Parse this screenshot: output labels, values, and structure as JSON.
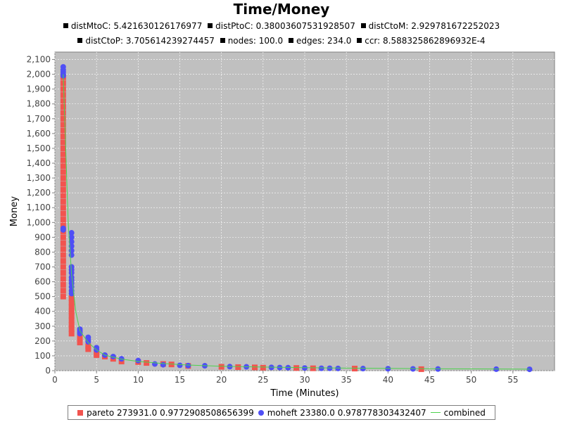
{
  "chart_data": {
    "type": "scatter",
    "title": "Time/Money",
    "subtitles": [
      "distMtoC: 5.421630126176977",
      "distPtoC: 0.38003607531928507",
      "distCtoM: 2.929781672252023",
      "distCtoP: 3.705614239274457",
      "nodes: 100.0",
      "edges: 234.0",
      "ccr: 8.588325862896932E-4"
    ],
    "xlabel": "Time (Minutes)",
    "ylabel": "Money",
    "xlim": [
      0,
      60
    ],
    "ylim": [
      0,
      2150
    ],
    "xticks": [
      "0",
      "5",
      "10",
      "15",
      "20",
      "25",
      "30",
      "35",
      "40",
      "45",
      "50",
      "55"
    ],
    "yticks": [
      "0",
      "100",
      "200",
      "300",
      "400",
      "500",
      "600",
      "700",
      "800",
      "900",
      "1,000",
      "1,100",
      "1,200",
      "1,300",
      "1,400",
      "1,500",
      "1,600",
      "1,700",
      "1,800",
      "1,900",
      "2,000",
      "2,100"
    ],
    "grid": true,
    "legend_position": "bottom",
    "colors": {
      "background": "#c0c0c0",
      "grid": "#ffffff",
      "pareto": "#f2544f",
      "moheft": "#4f4ff5",
      "combined": "#4cd24c"
    },
    "series": [
      {
        "name": "pareto 273931.0 0.9772908508656399",
        "marker": "square",
        "points": [
          [
            1,
            1980
          ],
          [
            1,
            1940
          ],
          [
            1,
            1900
          ],
          [
            1,
            1860
          ],
          [
            1,
            1820
          ],
          [
            1,
            1780
          ],
          [
            1,
            1740
          ],
          [
            1,
            1700
          ],
          [
            1,
            1660
          ],
          [
            1,
            1620
          ],
          [
            1,
            1580
          ],
          [
            1,
            1540
          ],
          [
            1,
            1500
          ],
          [
            1,
            1460
          ],
          [
            1,
            1420
          ],
          [
            1,
            1380
          ],
          [
            1,
            1340
          ],
          [
            1,
            1300
          ],
          [
            1,
            1260
          ],
          [
            1,
            1220
          ],
          [
            1,
            1180
          ],
          [
            1,
            1140
          ],
          [
            1,
            1100
          ],
          [
            1,
            1060
          ],
          [
            1,
            1020
          ],
          [
            1,
            980
          ],
          [
            1,
            940
          ],
          [
            1,
            900
          ],
          [
            1,
            860
          ],
          [
            1,
            820
          ],
          [
            1,
            780
          ],
          [
            1,
            740
          ],
          [
            1,
            700
          ],
          [
            1,
            660
          ],
          [
            1,
            620
          ],
          [
            1,
            580
          ],
          [
            1,
            540
          ],
          [
            1,
            500
          ],
          [
            2,
            490
          ],
          [
            2,
            460
          ],
          [
            2,
            430
          ],
          [
            2,
            400
          ],
          [
            2,
            370
          ],
          [
            2,
            340
          ],
          [
            2,
            310
          ],
          [
            2,
            280
          ],
          [
            2,
            250
          ],
          [
            3,
            240
          ],
          [
            3,
            215
          ],
          [
            3,
            190
          ],
          [
            4,
            165
          ],
          [
            4,
            145
          ],
          [
            5,
            125
          ],
          [
            5,
            105
          ],
          [
            6,
            95
          ],
          [
            7,
            80
          ],
          [
            8,
            62
          ],
          [
            10,
            58
          ],
          [
            11,
            52
          ],
          [
            13,
            45
          ],
          [
            14,
            42
          ],
          [
            16,
            32
          ],
          [
            20,
            26
          ],
          [
            22,
            24
          ],
          [
            24,
            22
          ],
          [
            25,
            20
          ],
          [
            29,
            18
          ],
          [
            31,
            16
          ],
          [
            36,
            14
          ],
          [
            44,
            10
          ]
        ]
      },
      {
        "name": "moheft 23380.0 0.978778303432407",
        "marker": "circle",
        "points": [
          [
            1,
            2050
          ],
          [
            1,
            2030
          ],
          [
            1,
            2015
          ],
          [
            1,
            2000
          ],
          [
            1,
            1990
          ],
          [
            1,
            960
          ],
          [
            1,
            950
          ],
          [
            2,
            930
          ],
          [
            2,
            900
          ],
          [
            2,
            870
          ],
          [
            2,
            840
          ],
          [
            2,
            810
          ],
          [
            2,
            780
          ],
          [
            2,
            700
          ],
          [
            2,
            680
          ],
          [
            2,
            660
          ],
          [
            2,
            630
          ],
          [
            2,
            610
          ],
          [
            2,
            590
          ],
          [
            2,
            565
          ],
          [
            2,
            540
          ],
          [
            2,
            520
          ],
          [
            3,
            280
          ],
          [
            3,
            270
          ],
          [
            3,
            260
          ],
          [
            3,
            250
          ],
          [
            4,
            225
          ],
          [
            4,
            210
          ],
          [
            4,
            195
          ],
          [
            5,
            155
          ],
          [
            5,
            140
          ],
          [
            6,
            105
          ],
          [
            7,
            95
          ],
          [
            8,
            80
          ],
          [
            10,
            68
          ],
          [
            12,
            45
          ],
          [
            13,
            40
          ],
          [
            15,
            36
          ],
          [
            16,
            34
          ],
          [
            18,
            33
          ],
          [
            21,
            27
          ],
          [
            23,
            26
          ],
          [
            26,
            22
          ],
          [
            27,
            21
          ],
          [
            28,
            20
          ],
          [
            30,
            18
          ],
          [
            32,
            16
          ],
          [
            33,
            16
          ],
          [
            34,
            15
          ],
          [
            37,
            14
          ],
          [
            40,
            13
          ],
          [
            43,
            12
          ],
          [
            46,
            11
          ],
          [
            53,
            10
          ],
          [
            57,
            9
          ]
        ]
      },
      {
        "name": "combined",
        "marker": "line",
        "points": [
          [
            1,
            2000
          ],
          [
            1.3,
            1500
          ],
          [
            1.6,
            1000
          ],
          [
            2,
            650
          ],
          [
            2.5,
            400
          ],
          [
            3,
            270
          ],
          [
            4,
            190
          ],
          [
            5,
            140
          ],
          [
            6,
            105
          ],
          [
            8,
            78
          ],
          [
            10,
            62
          ],
          [
            13,
            48
          ],
          [
            16,
            38
          ],
          [
            20,
            30
          ],
          [
            25,
            24
          ],
          [
            30,
            20
          ],
          [
            35,
            17
          ],
          [
            40,
            15
          ],
          [
            45,
            13
          ],
          [
            50,
            12
          ],
          [
            55,
            11
          ],
          [
            57,
            10
          ]
        ]
      }
    ]
  }
}
